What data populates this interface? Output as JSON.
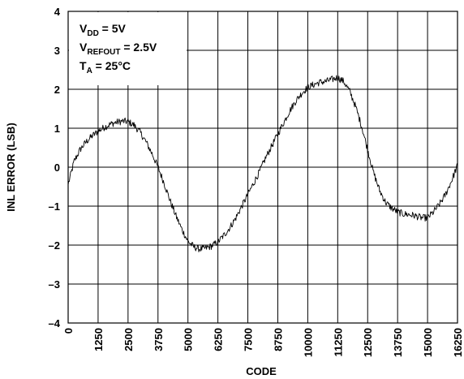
{
  "chart_data": {
    "type": "line",
    "title": "",
    "xlabel": "CODE",
    "ylabel": "INL ERROR (LSB)",
    "xlim": [
      0,
      16250
    ],
    "ylim": [
      -4,
      4
    ],
    "x_ticks": [
      "0",
      "1250",
      "2500",
      "3750",
      "5000",
      "6250",
      "7500",
      "8750",
      "10000",
      "11250",
      "12500",
      "13750",
      "15000",
      "16250"
    ],
    "y_ticks": [
      "4",
      "3",
      "2",
      "1",
      "0",
      "–1",
      "–2",
      "–3",
      "–4"
    ],
    "grid": true,
    "legend": "none",
    "line_color": "#000000",
    "conditions": [
      {
        "main": "V",
        "sub": "DD",
        "rest": " = 5V"
      },
      {
        "main": "V",
        "sub": "REFOUT",
        "rest": " = 2.5V"
      },
      {
        "main": "T",
        "sub": "A",
        "rest": " = 25°C"
      }
    ],
    "series": [
      {
        "x": [
          0,
          250,
          500,
          750,
          1000,
          1250,
          1500,
          1750,
          2000,
          2250,
          2500,
          2750,
          3000,
          3250,
          3500,
          3750,
          4000,
          4250,
          4500,
          4750,
          5000,
          5250,
          5500,
          5750,
          6000,
          6250,
          6500,
          6750,
          7000,
          7250,
          7500,
          7750,
          8000,
          8250,
          8500,
          8750,
          9000,
          9250,
          9500,
          9750,
          10000,
          10250,
          10500,
          10750,
          11000,
          11250,
          11500,
          11750,
          12000,
          12250,
          12500,
          12750,
          13000,
          13250,
          13500,
          13750,
          14000,
          14250,
          14500,
          14750,
          15000,
          15250,
          15500,
          15750,
          16000,
          16250
        ],
        "values": [
          -0.45,
          0.15,
          0.45,
          0.65,
          0.8,
          0.92,
          1.02,
          1.1,
          1.15,
          1.18,
          1.17,
          1.08,
          0.9,
          0.65,
          0.35,
          0.0,
          -0.4,
          -0.85,
          -1.25,
          -1.6,
          -1.9,
          -2.05,
          -2.1,
          -2.08,
          -2.02,
          -1.92,
          -1.75,
          -1.55,
          -1.3,
          -1.0,
          -0.7,
          -0.4,
          -0.1,
          0.25,
          0.55,
          0.85,
          1.15,
          1.45,
          1.7,
          1.9,
          2.05,
          2.12,
          2.18,
          2.2,
          2.25,
          2.3,
          2.2,
          1.95,
          1.55,
          1.05,
          0.45,
          -0.15,
          -0.6,
          -0.9,
          -1.05,
          -1.15,
          -1.2,
          -1.22,
          -1.25,
          -1.3,
          -1.3,
          -1.15,
          -0.95,
          -0.7,
          -0.35,
          0.05
        ]
      }
    ]
  }
}
